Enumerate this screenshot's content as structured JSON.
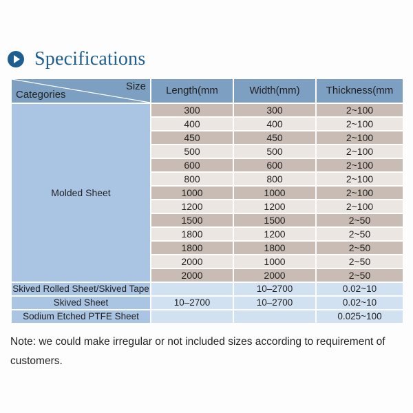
{
  "heading": {
    "title": "Specifications",
    "icon": "play-circle-icon",
    "accent_color": "#1f5f8f"
  },
  "table": {
    "header": {
      "size": "Size",
      "categories": "Categories",
      "length": "Length(mm",
      "width": "Width(mm)",
      "thickness": "Thickness(mm"
    },
    "molded": {
      "label": "Molded Sheet",
      "rows": [
        [
          "300",
          "300",
          "2~100"
        ],
        [
          "400",
          "400",
          "2~100"
        ],
        [
          "450",
          "450",
          "2~100"
        ],
        [
          "500",
          "500",
          "2~100"
        ],
        [
          "600",
          "600",
          "2~100"
        ],
        [
          "800",
          "800",
          "2~100"
        ],
        [
          "1000",
          "1000",
          "2~100"
        ],
        [
          "1200",
          "1200",
          "2~100"
        ],
        [
          "1500",
          "1500",
          "2~50"
        ],
        [
          "1800",
          "1200",
          "2~50"
        ],
        [
          "1800",
          "1800",
          "2~50"
        ],
        [
          "2000",
          "1000",
          "2~50"
        ],
        [
          "2000",
          "2000",
          "2~50"
        ]
      ]
    },
    "others": [
      {
        "category": "Skived Rolled Sheet/Skived Tape",
        "length": "",
        "width": "10–2700",
        "thickness": "0.02~10"
      },
      {
        "category": "Skived Sheet",
        "length": "10–2700",
        "width": "10–2700",
        "thickness": "0.02~10"
      },
      {
        "category": "Sodium Etched PTFE Sheet",
        "length": "",
        "width": "",
        "thickness": "0.025~100"
      }
    ]
  },
  "note": "Note: we could make irregular or not included sizes according to requirement of customers."
}
